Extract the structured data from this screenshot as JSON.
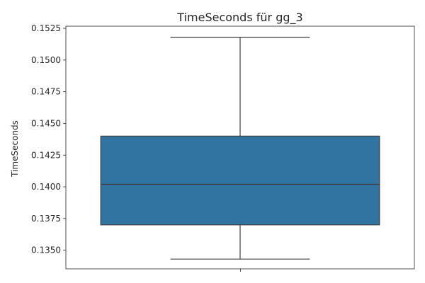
{
  "chart_data": {
    "type": "box",
    "title": "TimeSeconds für gg_3",
    "xlabel": "",
    "ylabel": "TimeSeconds",
    "ylim": [
      0.13353,
      0.15267
    ],
    "yticks": [
      0.135,
      0.1375,
      0.14,
      0.1425,
      0.145,
      0.1475,
      0.15,
      0.1525
    ],
    "ytick_labels": [
      "0.1350",
      "0.1375",
      "0.1400",
      "0.1425",
      "0.1450",
      "0.1475",
      "0.1500",
      "0.1525"
    ],
    "boxes": [
      {
        "name": "gg_3",
        "whisker_low": 0.1343,
        "q1": 0.137,
        "median": 0.1402,
        "q3": 0.144,
        "whisker_high": 0.1518,
        "color": "#3274a1"
      }
    ]
  }
}
